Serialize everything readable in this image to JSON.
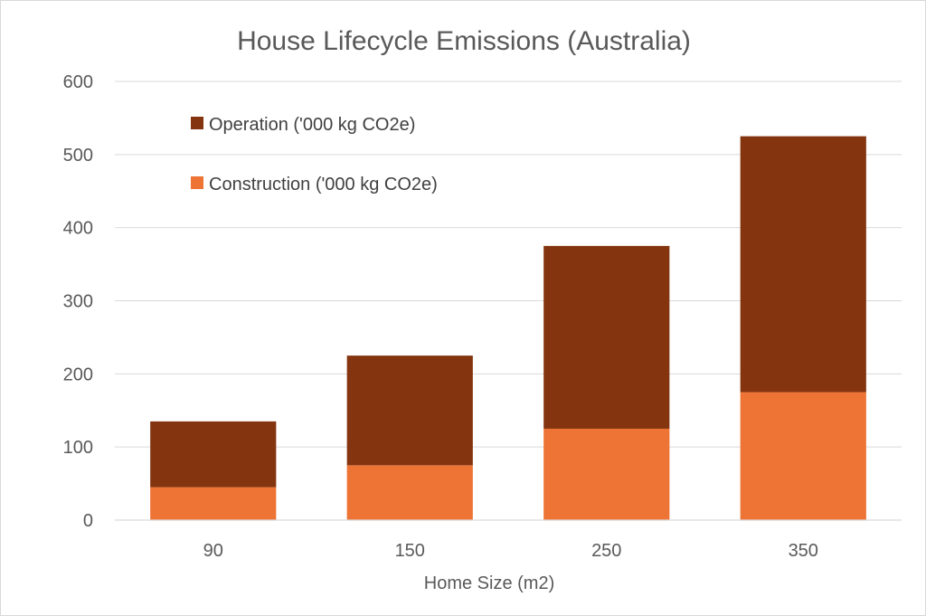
{
  "chart_data": {
    "type": "bar",
    "stacked": true,
    "title": "House Lifecycle Emissions (Australia)",
    "xlabel": "Home Size (m2)",
    "ylabel": "",
    "categories": [
      "90",
      "150",
      "250",
      "350"
    ],
    "series": [
      {
        "name": "Construction ('000 kg CO2e)",
        "values": [
          45,
          75,
          125,
          175
        ],
        "color": "#ED7434"
      },
      {
        "name": "Operation ('000 kg CO2e)",
        "values": [
          90,
          150,
          250,
          350
        ],
        "color": "#843510"
      }
    ],
    "ylim": [
      0,
      600
    ],
    "yticks": [
      0,
      100,
      200,
      300,
      400,
      500,
      600
    ],
    "grid": true,
    "legend_position": "top-left"
  }
}
